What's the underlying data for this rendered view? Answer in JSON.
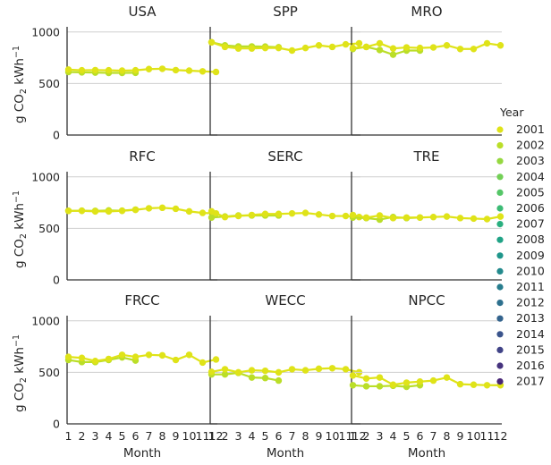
{
  "chart_data": {
    "type": "line",
    "subtype": "faceted-point-line",
    "facets": [
      "USA",
      "SPP",
      "MRO",
      "RFC",
      "SERC",
      "TRE",
      "FRCC",
      "WECC",
      "NPCC"
    ],
    "layout": "3x3",
    "x": [
      1,
      2,
      3,
      4,
      5,
      6,
      7,
      8,
      9,
      10,
      11,
      12
    ],
    "x_tick_labels": [
      "1",
      "2",
      "3",
      "4",
      "5",
      "6",
      "7",
      "8",
      "9",
      "10",
      "11",
      "12"
    ],
    "xlabel": "Month",
    "ylabel_text": "g CO",
    "ylabel_sub": "2",
    "ylabel_unit": " kWh",
    "ylabel_sup": "−1",
    "ylim": [
      0,
      1050
    ],
    "y_ticks": [
      0,
      500,
      1000
    ],
    "y_tick_labels": [
      "0",
      "500",
      "1000"
    ],
    "grid": "horizontal",
    "legend": {
      "title": "Year",
      "placement": "right",
      "entries": [
        "2001",
        "2002",
        "2003",
        "2004",
        "2005",
        "2006",
        "2007",
        "2008",
        "2009",
        "2010",
        "2011",
        "2012",
        "2013",
        "2014",
        "2015",
        "2016",
        "2017"
      ],
      "colors": [
        "#dfe318",
        "#bade28",
        "#95d840",
        "#73d056",
        "#55c667",
        "#3cbb75",
        "#29af7f",
        "#20a386",
        "#1f968b",
        "#238a8d",
        "#287d8e",
        "#2d708e",
        "#33638d",
        "#3a548c",
        "#404387",
        "#46337e",
        "#482576"
      ]
    },
    "panels": [
      {
        "title": "USA",
        "series": [
          {
            "year": "2001",
            "values": [
              635,
              628,
              630,
              628,
              625,
              628,
              640,
              643,
              630,
              625,
              618,
              612
            ]
          },
          {
            "year": "2002",
            "values": [
              612,
              608,
              606,
              603,
              603,
              604,
              null,
              null,
              null,
              null,
              null,
              null
            ]
          }
        ]
      },
      {
        "title": "SPP",
        "series": [
          {
            "year": "2001",
            "values": [
              900,
              855,
              840,
              840,
              845,
              845,
              820,
              845,
              870,
              855,
              880,
              890
            ]
          },
          {
            "year": "2002",
            "values": [
              900,
              870,
              860,
              860,
              858,
              852,
              null,
              null,
              null,
              null,
              null,
              null
            ]
          }
        ]
      },
      {
        "title": "MRO",
        "series": [
          {
            "year": "2001",
            "values": [
              845,
              855,
              890,
              840,
              850,
              845,
              850,
              870,
              835,
              835,
              890,
              870
            ]
          },
          {
            "year": "2002",
            "values": [
              835,
              855,
              825,
              780,
              820,
              820,
              null,
              null,
              null,
              null,
              null,
              null
            ]
          }
        ]
      },
      {
        "title": "RFC",
        "series": [
          {
            "year": "2001",
            "values": [
              670,
              670,
              665,
              665,
              670,
              680,
              695,
              700,
              690,
              665,
              650,
              645
            ]
          },
          {
            "year": "2002",
            "values": [
              670,
              672,
              670,
              674,
              672,
              682,
              null,
              null,
              null,
              null,
              null,
              null
            ]
          }
        ]
      },
      {
        "title": "SERC",
        "series": [
          {
            "year": "2001",
            "values": [
              665,
              610,
              620,
              630,
              640,
              640,
              645,
              650,
              635,
              620,
              620,
              610
            ]
          },
          {
            "year": "2002",
            "values": [
              605,
              615,
              625,
              625,
              625,
              625,
              null,
              null,
              null,
              null,
              null,
              null
            ]
          }
        ]
      },
      {
        "title": "TRE",
        "series": [
          {
            "year": "2001",
            "values": [
              630,
              605,
              625,
              600,
              605,
              605,
              610,
              615,
              600,
              595,
              590,
              615
            ]
          },
          {
            "year": "2002",
            "values": [
              605,
              600,
              585,
              610,
              600,
              605,
              null,
              null,
              null,
              null,
              null,
              null
            ]
          }
        ]
      },
      {
        "title": "FRCC",
        "series": [
          {
            "year": "2001",
            "values": [
              650,
              640,
              610,
              630,
              670,
              650,
              670,
              665,
              620,
              670,
              595,
              625
            ]
          },
          {
            "year": "2002",
            "values": [
              620,
              600,
              600,
              620,
              645,
              615,
              null,
              null,
              null,
              null,
              null,
              null
            ]
          }
        ]
      },
      {
        "title": "WECC",
        "series": [
          {
            "year": "2001",
            "values": [
              505,
              530,
              500,
              520,
              515,
              500,
              530,
              520,
              535,
              540,
              530,
              500
            ]
          },
          {
            "year": "2002",
            "values": [
              480,
              480,
              495,
              450,
              445,
              420,
              null,
              null,
              null,
              null,
              null,
              null
            ]
          }
        ]
      },
      {
        "title": "NPCC",
        "series": [
          {
            "year": "2001",
            "values": [
              470,
              440,
              450,
              380,
              400,
              410,
              420,
              450,
              385,
              380,
              375,
              375
            ]
          },
          {
            "year": "2002",
            "values": [
              375,
              365,
              365,
              370,
              360,
              375,
              null,
              null,
              null,
              null,
              null,
              null
            ]
          }
        ]
      }
    ]
  }
}
